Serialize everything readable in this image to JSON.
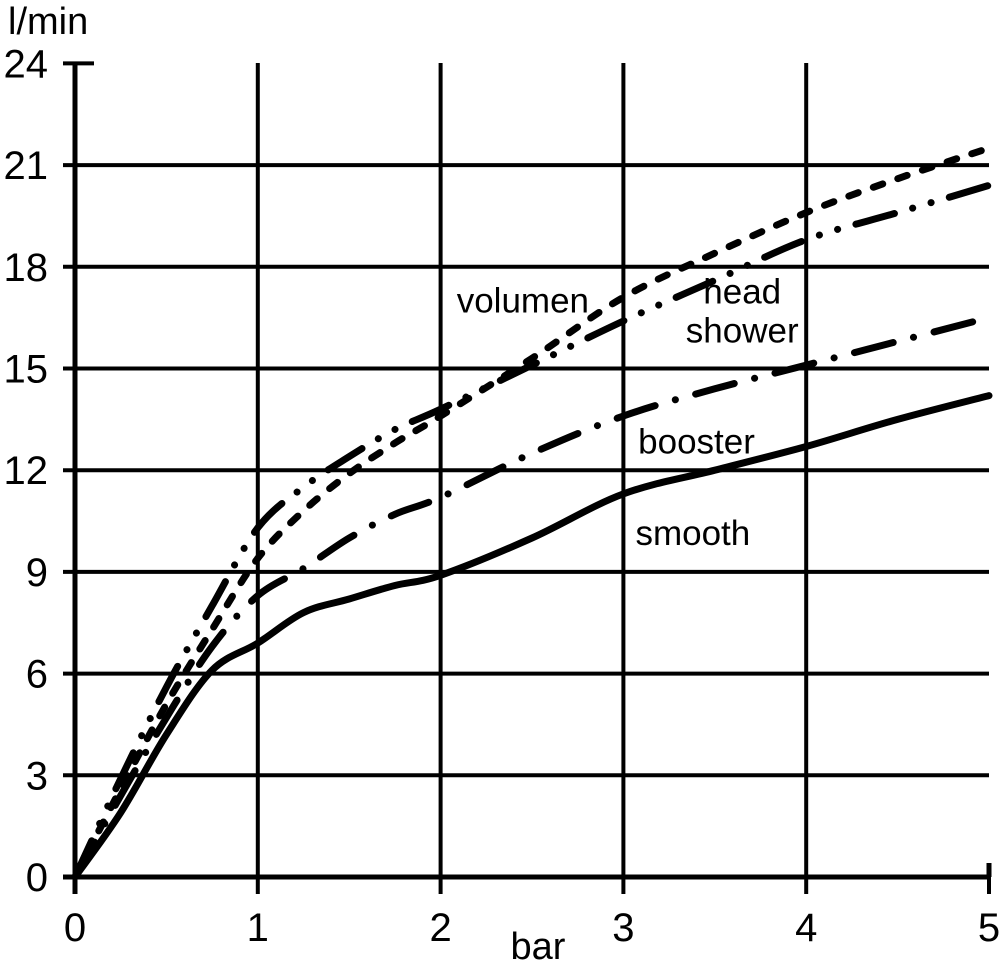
{
  "chart_data": {
    "type": "line",
    "title": "",
    "xlabel": "bar",
    "ylabel": "l/min",
    "xlim": [
      0,
      5
    ],
    "ylim": [
      0,
      24
    ],
    "x_ticks": [
      0,
      1,
      2,
      3,
      4,
      5
    ],
    "y_ticks": [
      0,
      3,
      6,
      9,
      12,
      15,
      18,
      21,
      24
    ],
    "grid": true,
    "legend": "inline-curve-labels",
    "background": "#ffffff",
    "axis_color": "#000000",
    "line_color": "#000000",
    "x": [
      0,
      0.25,
      0.5,
      0.75,
      1,
      1.25,
      1.5,
      1.75,
      2,
      2.5,
      3,
      3.5,
      4,
      4.5,
      5
    ],
    "series": [
      {
        "name": "volumen",
        "line_style": "dashed",
        "values": [
          0,
          2.6,
          5.1,
          7.3,
          9.4,
          10.8,
          11.9,
          12.8,
          13.6,
          15.3,
          17.1,
          18.4,
          19.6,
          20.6,
          21.5
        ],
        "label": {
          "lines": [
            "volumen"
          ],
          "x": 2.45,
          "y": 17.0
        }
      },
      {
        "name": "head shower",
        "line_style": "dash-dot-dot",
        "values": [
          0,
          2.9,
          5.6,
          8.0,
          10.3,
          11.5,
          12.4,
          13.2,
          13.8,
          15.1,
          16.4,
          17.6,
          18.8,
          19.6,
          20.4
        ],
        "label": {
          "lines": [
            "head",
            "shower"
          ],
          "x": 3.65,
          "y": 16.7
        }
      },
      {
        "name": "booster",
        "line_style": "dash-dot",
        "values": [
          0,
          2.4,
          4.7,
          6.8,
          8.3,
          9.1,
          10.0,
          10.7,
          11.2,
          12.5,
          13.6,
          14.4,
          15.1,
          15.8,
          16.5
        ],
        "label": {
          "lines": [
            "booster"
          ],
          "x": 3.4,
          "y": 12.85
        }
      },
      {
        "name": "smooth",
        "line_style": "solid",
        "values": [
          0,
          1.9,
          4.2,
          6.1,
          6.9,
          7.8,
          8.2,
          8.6,
          8.9,
          10.0,
          11.3,
          12.0,
          12.7,
          13.5,
          14.2
        ],
        "label": {
          "lines": [
            "smooth"
          ],
          "x": 3.38,
          "y": 10.15
        }
      }
    ]
  }
}
